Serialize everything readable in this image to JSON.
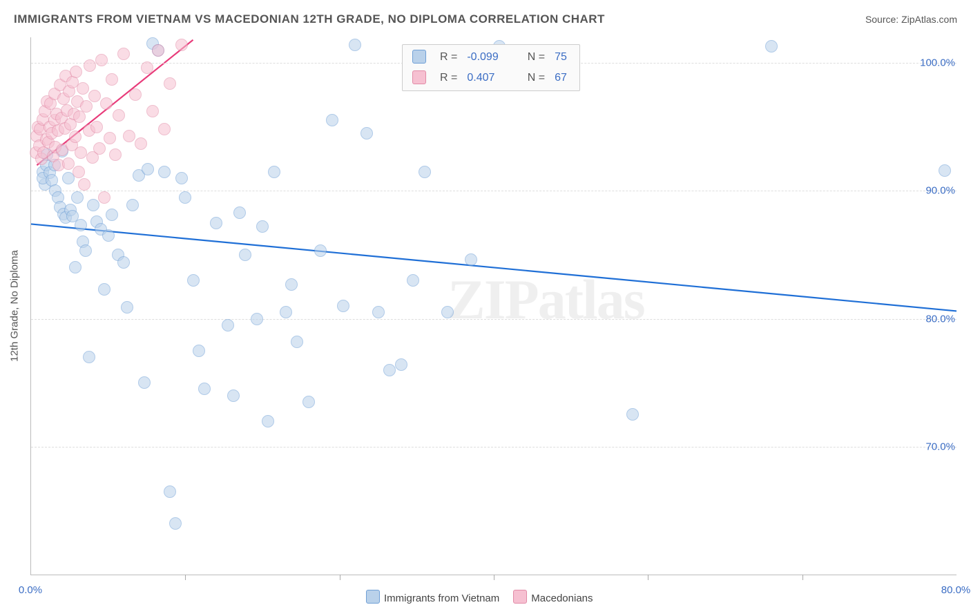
{
  "title": "IMMIGRANTS FROM VIETNAM VS MACEDONIAN 12TH GRADE, NO DIPLOMA CORRELATION CHART",
  "source_label": "Source: ZipAtlas.com",
  "watermark": "ZIPatlas",
  "ylabel": "12th Grade, No Diploma",
  "chart": {
    "type": "scatter",
    "x_min": 0.0,
    "x_max": 80.0,
    "y_min": 60.0,
    "y_max": 102.0,
    "x_ticks": [
      0.0,
      80.0
    ],
    "x_tick_labels": [
      "0.0%",
      "80.0%"
    ],
    "x_minor_ticks": [
      13.33,
      26.67,
      40.0,
      53.33,
      66.67
    ],
    "y_ticks": [
      70.0,
      80.0,
      90.0,
      100.0
    ],
    "y_tick_labels": [
      "70.0%",
      "80.0%",
      "90.0%",
      "100.0%"
    ],
    "background_color": "#ffffff",
    "grid_color": "#dddddd",
    "axis_label_color": "#3b6dc4",
    "ytick_label_color": "#3b6dc4",
    "marker_radius": 9,
    "marker_opacity": 0.55,
    "series": [
      {
        "id": "vietnam",
        "label": "Immigrants from Vietnam",
        "fill_color": "#b9d1ea",
        "stroke_color": "#6f9fd6",
        "line_color": "#1f6fd6",
        "line_width": 2.2,
        "trend": {
          "x1": 0.0,
          "y1": 87.4,
          "x2": 80.0,
          "y2": 80.6
        },
        "R": "-0.099",
        "N": "75",
        "points": [
          [
            1.0,
            91.5
          ],
          [
            1.2,
            90.5
          ],
          [
            1.3,
            92.0
          ],
          [
            1.4,
            92.8
          ],
          [
            1.0,
            91.0
          ],
          [
            1.6,
            91.4
          ],
          [
            1.8,
            90.8
          ],
          [
            2.0,
            92.0
          ],
          [
            2.1,
            90.0
          ],
          [
            2.3,
            89.5
          ],
          [
            2.5,
            88.7
          ],
          [
            2.7,
            93.1
          ],
          [
            2.8,
            88.2
          ],
          [
            3.0,
            87.9
          ],
          [
            3.2,
            91.0
          ],
          [
            3.4,
            88.5
          ],
          [
            3.6,
            88.0
          ],
          [
            3.8,
            84.0
          ],
          [
            4.0,
            89.5
          ],
          [
            4.3,
            87.3
          ],
          [
            4.5,
            86.0
          ],
          [
            4.7,
            85.3
          ],
          [
            5.0,
            77.0
          ],
          [
            5.4,
            88.9
          ],
          [
            5.7,
            87.6
          ],
          [
            6.0,
            87.0
          ],
          [
            6.3,
            82.3
          ],
          [
            6.7,
            86.5
          ],
          [
            7.0,
            88.1
          ],
          [
            7.5,
            85.0
          ],
          [
            8.0,
            84.4
          ],
          [
            8.3,
            80.9
          ],
          [
            8.8,
            88.9
          ],
          [
            9.3,
            91.2
          ],
          [
            9.8,
            75.0
          ],
          [
            10.1,
            91.7
          ],
          [
            10.5,
            101.5
          ],
          [
            11.0,
            101.0
          ],
          [
            11.5,
            91.5
          ],
          [
            12.0,
            66.5
          ],
          [
            12.5,
            64.0
          ],
          [
            13.0,
            91.0
          ],
          [
            13.3,
            89.5
          ],
          [
            14.0,
            83.0
          ],
          [
            14.5,
            77.5
          ],
          [
            15.0,
            74.5
          ],
          [
            16.0,
            87.5
          ],
          [
            17.0,
            79.5
          ],
          [
            17.5,
            74.0
          ],
          [
            18.0,
            88.3
          ],
          [
            18.5,
            85.0
          ],
          [
            19.5,
            80.0
          ],
          [
            20.0,
            87.2
          ],
          [
            20.5,
            72.0
          ],
          [
            21.0,
            91.5
          ],
          [
            22.0,
            80.5
          ],
          [
            22.5,
            82.7
          ],
          [
            23.0,
            78.2
          ],
          [
            24.0,
            73.5
          ],
          [
            25.0,
            85.3
          ],
          [
            26.0,
            95.5
          ],
          [
            27.0,
            81.0
          ],
          [
            28.0,
            101.4
          ],
          [
            29.0,
            94.5
          ],
          [
            30.0,
            80.5
          ],
          [
            31.0,
            76.0
          ],
          [
            32.0,
            76.4
          ],
          [
            33.0,
            83.0
          ],
          [
            34.0,
            91.5
          ],
          [
            36.0,
            80.5
          ],
          [
            38.0,
            84.6
          ],
          [
            40.5,
            101.3
          ],
          [
            52.0,
            72.5
          ],
          [
            64.0,
            101.3
          ],
          [
            79.0,
            91.6
          ]
        ]
      },
      {
        "id": "macedonian",
        "label": "Macedonians",
        "fill_color": "#f6c0d1",
        "stroke_color": "#e28aa6",
        "line_color": "#e83b7a",
        "line_width": 2.2,
        "trend": {
          "x1": 0.5,
          "y1": 92.0,
          "x2": 14.0,
          "y2": 101.8
        },
        "R": " 0.407",
        "N": "67",
        "points": [
          [
            0.4,
            93.0
          ],
          [
            0.5,
            94.3
          ],
          [
            0.6,
            95.0
          ],
          [
            0.7,
            93.5
          ],
          [
            0.8,
            94.8
          ],
          [
            0.9,
            92.5
          ],
          [
            1.0,
            95.6
          ],
          [
            1.1,
            93.0
          ],
          [
            1.2,
            96.2
          ],
          [
            1.3,
            94.0
          ],
          [
            1.4,
            97.0
          ],
          [
            1.5,
            93.8
          ],
          [
            1.6,
            95.0
          ],
          [
            1.7,
            96.8
          ],
          [
            1.8,
            94.5
          ],
          [
            1.9,
            92.7
          ],
          [
            2.0,
            97.6
          ],
          [
            2.05,
            95.5
          ],
          [
            2.1,
            93.4
          ],
          [
            2.2,
            96.0
          ],
          [
            2.3,
            94.7
          ],
          [
            2.4,
            92.0
          ],
          [
            2.5,
            98.3
          ],
          [
            2.6,
            95.7
          ],
          [
            2.7,
            93.2
          ],
          [
            2.8,
            97.2
          ],
          [
            2.9,
            94.9
          ],
          [
            3.0,
            99.0
          ],
          [
            3.1,
            96.3
          ],
          [
            3.2,
            92.1
          ],
          [
            3.3,
            97.8
          ],
          [
            3.4,
            95.2
          ],
          [
            3.5,
            93.6
          ],
          [
            3.6,
            98.5
          ],
          [
            3.7,
            96.0
          ],
          [
            3.8,
            94.2
          ],
          [
            3.9,
            99.3
          ],
          [
            4.0,
            97.0
          ],
          [
            4.1,
            91.5
          ],
          [
            4.2,
            95.8
          ],
          [
            4.3,
            93.0
          ],
          [
            4.5,
            98.0
          ],
          [
            4.6,
            90.5
          ],
          [
            4.8,
            96.6
          ],
          [
            5.0,
            94.7
          ],
          [
            5.1,
            99.8
          ],
          [
            5.3,
            92.6
          ],
          [
            5.5,
            97.4
          ],
          [
            5.7,
            95.0
          ],
          [
            5.9,
            93.3
          ],
          [
            6.1,
            100.2
          ],
          [
            6.3,
            89.5
          ],
          [
            6.5,
            96.8
          ],
          [
            6.8,
            94.1
          ],
          [
            7.0,
            98.7
          ],
          [
            7.3,
            92.8
          ],
          [
            7.6,
            95.9
          ],
          [
            8.0,
            100.7
          ],
          [
            8.5,
            94.3
          ],
          [
            9.0,
            97.5
          ],
          [
            9.5,
            93.7
          ],
          [
            10.0,
            99.6
          ],
          [
            10.5,
            96.2
          ],
          [
            11.0,
            101.0
          ],
          [
            11.5,
            94.8
          ],
          [
            12.0,
            98.4
          ],
          [
            13.0,
            101.4
          ]
        ]
      }
    ]
  },
  "legend_top": {
    "R_label": "R =",
    "N_label": "N ="
  },
  "legend_bottom": {
    "items": [
      "Immigrants from Vietnam",
      "Macedonians"
    ]
  }
}
